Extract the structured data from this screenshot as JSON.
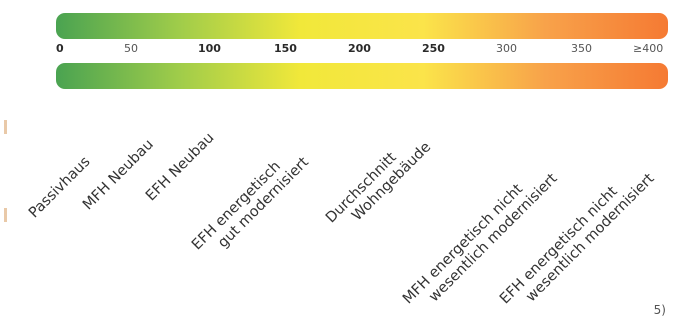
{
  "scale": {
    "ticks": [
      "0",
      "50",
      "100",
      "150",
      "200",
      "250",
      "300",
      "350",
      "≥400"
    ],
    "gradient_colors": [
      "#4aa351",
      "#9fcc4a",
      "#f1e83a",
      "#fbe44a",
      "#f8a24a",
      "#f57a33"
    ]
  },
  "categories": [
    {
      "line1": "Passivhaus",
      "line2": ""
    },
    {
      "line1": "MFH Neubau",
      "line2": ""
    },
    {
      "line1": "EFH Neubau",
      "line2": ""
    },
    {
      "line1": "EFH energetisch",
      "line2": "gut modernisiert"
    },
    {
      "line1": "Durchschnitt",
      "line2": "Wohngebäude"
    },
    {
      "line1": "MFH energetisch nicht",
      "line2": "wesentlich modernisiert"
    },
    {
      "line1": "EFH energetisch nicht",
      "line2": "wesentlich modernisiert"
    }
  ],
  "footnote": "5)"
}
